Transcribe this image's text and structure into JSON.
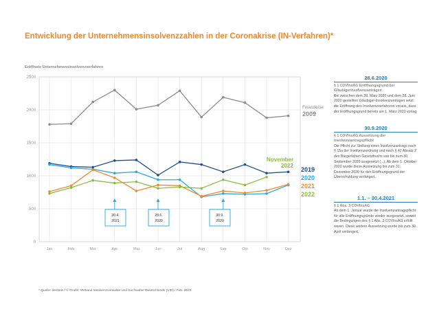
{
  "title": "Entwicklung der Unternehmensinsolvenzzahlen in der Coronakrise (IN-Verfahren)*",
  "colors": {
    "title": "#f0872a",
    "y2009": "#8c8c8c",
    "y2019": "#1d4f8c",
    "y2020": "#2aa6dc",
    "y2021": "#ee8a2c",
    "y2022": "#8cbd3f",
    "nov2022": "#8cbd3f"
  },
  "chart_data": {
    "type": "line",
    "ylabel": "Eröffnete Unternehmensinsolvenzverfahren",
    "ylim": [
      0,
      2500
    ],
    "yticks": [
      "0",
      "500",
      "1000",
      "1500",
      "2000",
      "2500"
    ],
    "categories": [
      "Jan",
      "Feb",
      "Mrz",
      "Apr",
      "Mai",
      "Jun",
      "Jul",
      "Aug",
      "Sep",
      "Okt",
      "Nov",
      "Dez"
    ],
    "series": [
      {
        "name": "2009",
        "label_line1": "Finanzkrise",
        "label_line2": "2009",
        "color": "#8c8c8c",
        "values": [
          1780,
          1790,
          2120,
          2300,
          2010,
          2070,
          2290,
          1890,
          2190,
          2110,
          1880,
          1910
        ]
      },
      {
        "name": "2019",
        "color": "#1d4f8c",
        "values": [
          1190,
          1140,
          1130,
          1230,
          1240,
          1010,
          1210,
          1170,
          1060,
          1170,
          1040,
          1060
        ]
      },
      {
        "name": "2020",
        "color": "#2aa6dc",
        "values": [
          1170,
          1120,
          1100,
          1040,
          1060,
          940,
          940,
          680,
          730,
          720,
          730,
          860
        ]
      },
      {
        "name": "2021",
        "color": "#ee8a2c",
        "values": [
          760,
          850,
          1090,
          970,
          770,
          860,
          850,
          690,
          770,
          740,
          780,
          870
        ]
      },
      {
        "name": "2022",
        "color": "#8cbd3f",
        "values": [
          730,
          820,
          930,
          890,
          910,
          810,
          830,
          810,
          940,
          860,
          980,
          null
        ]
      }
    ],
    "nov_label": [
      "November",
      "2022"
    ],
    "callouts": [
      {
        "month": "Apr",
        "line1": "30.4.",
        "line2": "2021"
      },
      {
        "month": "Jun",
        "line1": "28.6.",
        "line2": "2020"
      },
      {
        "month": "Sep",
        "line1": "30.9.",
        "line2": "2020"
      }
    ]
  },
  "sidebar": [
    {
      "head": "28.6.2020",
      "sub": "§ 1 COVInsAG Eröffnungsgrund bei Gläubigerinsolvenzanträgen",
      "text": "Bei zwischen dem 28. März 2020 und dem 28. Juni 2020 gestellten Gläubiger-Insolvenzanträgen setzt die Eröffnung des Insolvenzverfahrens voraus, dass der Eröffnungsgrund bereits am 1. März 2020 vorlag."
    },
    {
      "head": "30.9.2020",
      "sub": "§ 1 COVInsAG Aussetzung der Insolvenzantragspflicht",
      "text": "Die Pflicht zur Stellung eines Insolvenzantrags nach § 15a der Insolvenzordnung und nach § 42 Absatz 2 des Bürgerlichen Gesetzbuchs war bis zum 30. September 2020 ausgesetzt (...). Ab dem 1. Oktober 2020 wurde diese Aussetzung bis zum 31. Dezember 2020 für den Eröffnungsgrund der Überschuldung verlängert."
    },
    {
      "head": "1.1. – 30.4.2021",
      "sub": "§ 1 Abs. 3 COVInsAG",
      "text": "Ab dem 1. Januar wurde die Insolvenzantragspflicht für alle Eröffnungsgründe wieder ausgesetzt, soweit die Bedingungen des § 1 Abs. 3 COVInsAG erfüllt waren. Diese weitere Aussetzung wurde bis zum 30. April verlängert."
    }
  ],
  "footer": "* Quelle: destatis / © Grafik: Verband Insolvenzverwalter und Sachwalter Deutschlands (VID) / Feb. 2023"
}
